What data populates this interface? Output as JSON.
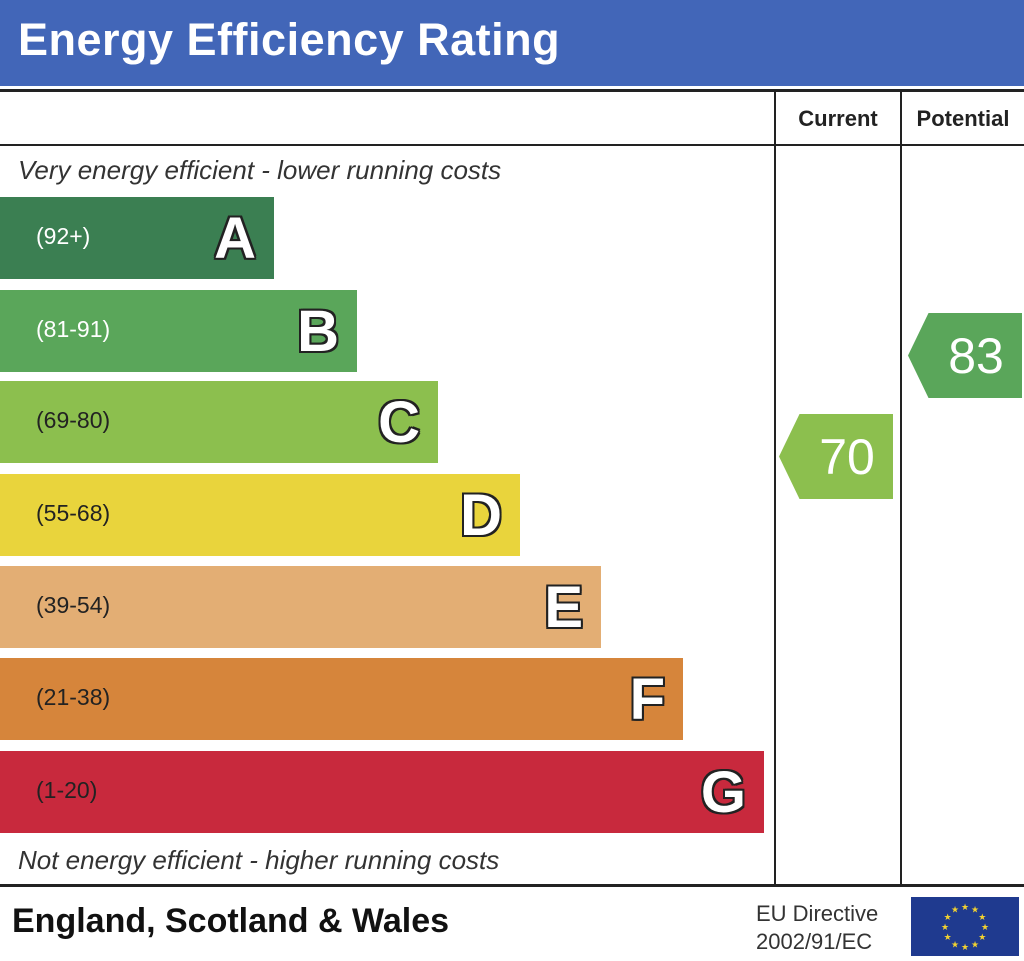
{
  "title": "Energy Efficiency Rating",
  "columns": {
    "current": "Current",
    "potential": "Potential"
  },
  "top_note": "Very energy efficient - lower running costs",
  "bottom_note": "Not energy efficient - higher running costs",
  "footer": {
    "country": "England, Scotland & Wales",
    "directive_line1": "EU Directive",
    "directive_line2": "2002/91/EC",
    "flag_icon": "eu-flag-icon"
  },
  "colors": {
    "header": "#4266b8",
    "flag": "#1f3a8f",
    "stars": "#f2d230"
  },
  "chart_data": {
    "type": "bar",
    "title": "Energy Efficiency Rating",
    "bands": [
      {
        "letter": "A",
        "range": "(92+)",
        "color": "#3b7f52",
        "text": "#fff"
      },
      {
        "letter": "B",
        "range": "(81-91)",
        "color": "#5aa65a",
        "text": "#fff"
      },
      {
        "letter": "C",
        "range": "(69-80)",
        "color": "#8cbf4e",
        "text": "#222"
      },
      {
        "letter": "D",
        "range": "(55-68)",
        "color": "#e9d43c",
        "text": "#222"
      },
      {
        "letter": "E",
        "range": "(39-54)",
        "color": "#e3ae74",
        "text": "#222"
      },
      {
        "letter": "F",
        "range": "(21-38)",
        "color": "#d6853b",
        "text": "#222"
      },
      {
        "letter": "G",
        "range": "(1-20)",
        "color": "#c8293d",
        "text": "#222"
      }
    ],
    "current": {
      "value": "70",
      "band": "C",
      "color": "#8cbf4e"
    },
    "potential": {
      "value": "83",
      "band": "B",
      "color": "#5aa65a"
    }
  }
}
